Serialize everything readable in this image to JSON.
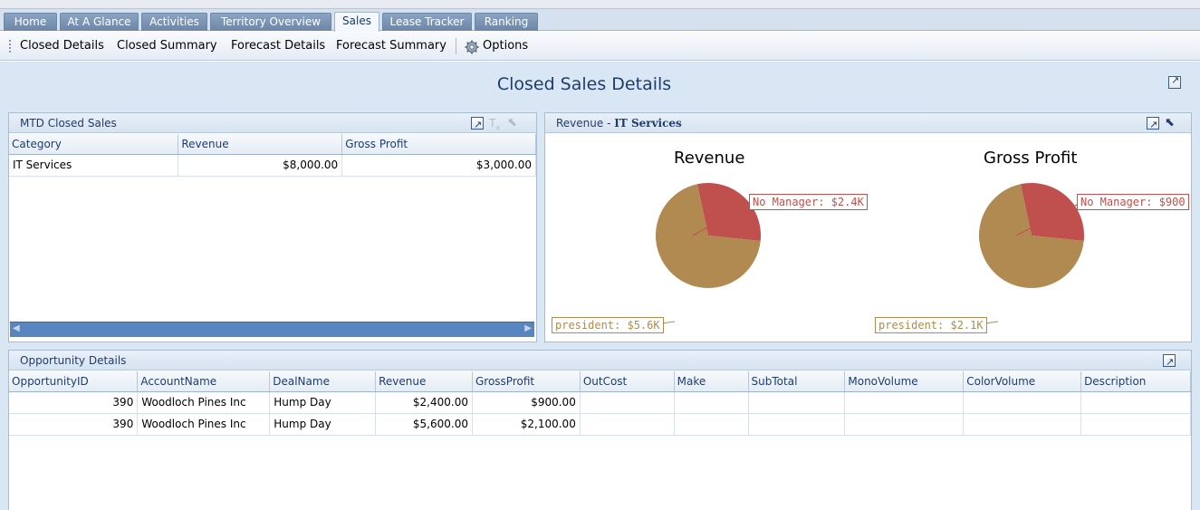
{
  "tabs": [
    {
      "label": "Home"
    },
    {
      "label": "At A Glance"
    },
    {
      "label": "Activities"
    },
    {
      "label": "Territory Overview"
    },
    {
      "label": "Sales",
      "active": true
    },
    {
      "label": "Lease Tracker"
    },
    {
      "label": "Ranking"
    }
  ],
  "toolbar": {
    "closed_details": "Closed Details",
    "closed_summary": "Closed Summary",
    "forecast_details": "Forecast Details",
    "forecast_summary": "Forecast Summary",
    "options": "Options"
  },
  "page": {
    "title": "Closed Sales Details"
  },
  "mtd": {
    "title": "MTD Closed Sales",
    "columns": [
      "Category",
      "Revenue",
      "Gross Profit"
    ],
    "rows": [
      {
        "category": "IT Services",
        "revenue": "$8,000.00",
        "gross_profit": "$3,000.00"
      }
    ]
  },
  "chart_panel": {
    "title_prefix": "Revenue - ",
    "title_bold": "IT Services"
  },
  "chart_data": [
    {
      "type": "pie",
      "title": "Revenue",
      "slices": [
        {
          "label": "No Manager: $2.4K",
          "name": "No Manager",
          "value": 2400,
          "color": "#c0504d"
        },
        {
          "label": "president: $5.6K",
          "name": "president",
          "value": 5600,
          "color": "#b08a50"
        }
      ]
    },
    {
      "type": "pie",
      "title": "Gross Profit",
      "slices": [
        {
          "label": "No Manager: $900",
          "name": "No Manager",
          "value": 900,
          "color": "#c0504d"
        },
        {
          "label": "president: $2.1K",
          "name": "president",
          "value": 2100,
          "color": "#b08a50"
        }
      ]
    }
  ],
  "opportunity": {
    "title": "Opportunity Details",
    "columns": [
      "OpportunityID",
      "AccountName",
      "DealName",
      "Revenue",
      "GrossProfit",
      "OutCost",
      "Make",
      "SubTotal",
      "MonoVolume",
      "ColorVolume",
      "Description"
    ],
    "rows": [
      {
        "id": "390",
        "account": "Woodloch Pines Inc",
        "deal": "Hump Day",
        "revenue": "$2,400.00",
        "gross_profit": "$900.00"
      },
      {
        "id": "390",
        "account": "Woodloch Pines Inc",
        "deal": "Hump Day",
        "revenue": "$5,600.00",
        "gross_profit": "$2,100.00"
      }
    ]
  }
}
